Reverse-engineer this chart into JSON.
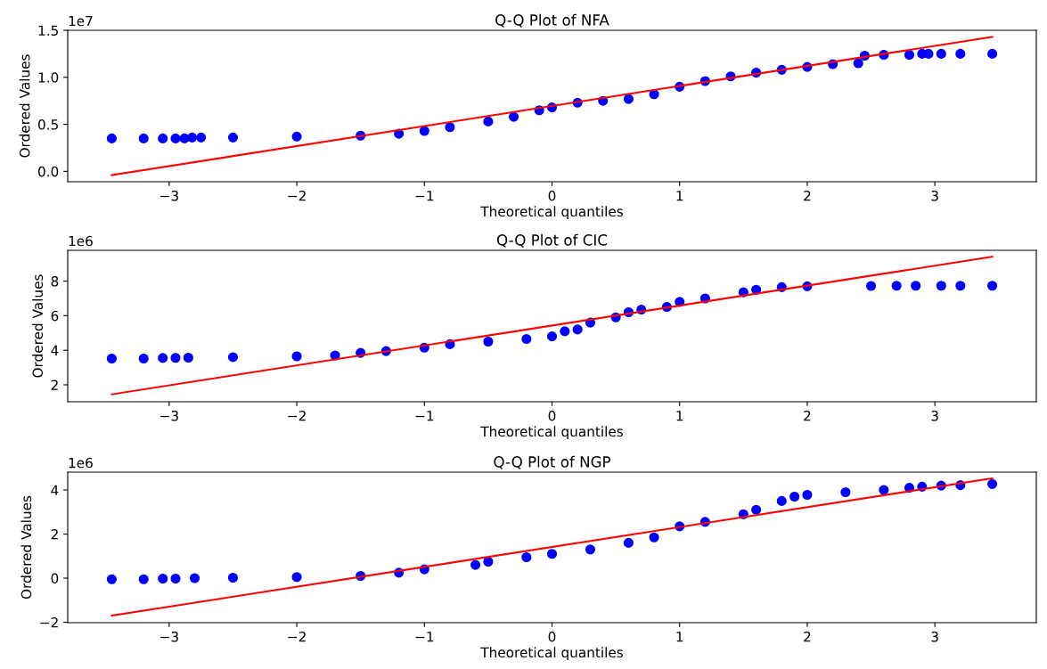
{
  "chart_data": [
    {
      "type": "scatter",
      "title": "Q-Q Plot of NFA",
      "xlabel": "Theoretical quantiles",
      "ylabel": "Ordered Values",
      "annotations": [
        "1e7"
      ],
      "xlim": [
        -3.795,
        3.795
      ],
      "xticks": [
        {
          "value": -3,
          "label": "−3"
        },
        {
          "value": -2,
          "label": "−2"
        },
        {
          "value": -1,
          "label": "−1"
        },
        0,
        1,
        2,
        3
      ],
      "ylim": [
        -0.11,
        1.5
      ],
      "yticks": [
        {
          "value": 0,
          "label": "0.0"
        },
        0.5,
        {
          "value": 1,
          "label": "1.0"
        },
        1.5
      ],
      "series": [
        {
          "marker": "circle",
          "color": "#0000ff",
          "x": [
            -3.45,
            -3.2,
            -3.05,
            -2.95,
            -2.88,
            -2.82,
            -2.75,
            -2.5,
            -2.0,
            -1.5,
            -1.2,
            -1.0,
            -0.8,
            -0.5,
            -0.3,
            -0.1,
            0.0,
            0.2,
            0.4,
            0.6,
            0.8,
            1.0,
            1.2,
            1.4,
            1.6,
            1.8,
            2.0,
            2.2,
            2.4,
            2.45,
            2.6,
            2.8,
            2.9,
            2.95,
            3.05,
            3.2,
            3.45
          ],
          "values": [
            0.35,
            0.35,
            0.35,
            0.35,
            0.35,
            0.36,
            0.36,
            0.36,
            0.37,
            0.38,
            0.4,
            0.43,
            0.47,
            0.53,
            0.58,
            0.65,
            0.68,
            0.73,
            0.75,
            0.77,
            0.82,
            0.9,
            0.96,
            1.01,
            1.05,
            1.08,
            1.11,
            1.14,
            1.15,
            1.23,
            1.24,
            1.24,
            1.25,
            1.25,
            1.25,
            1.25,
            1.25
          ]
        },
        {
          "type": "line",
          "color": "#ff0000",
          "x": [
            -3.45,
            3.45
          ],
          "values": [
            -0.04,
            1.43
          ]
        }
      ]
    },
    {
      "type": "scatter",
      "title": "Q-Q Plot of CIC",
      "xlabel": "Theoretical quantiles",
      "ylabel": "Ordered Values",
      "annotations": [
        "1e6"
      ],
      "xlim": [
        -3.795,
        3.795
      ],
      "xticks": [
        {
          "value": -3,
          "label": "−3"
        },
        {
          "value": -2,
          "label": "−2"
        },
        {
          "value": -1,
          "label": "−1"
        },
        0,
        1,
        2,
        3
      ],
      "ylim": [
        1.02,
        9.78
      ],
      "yticks": [
        2,
        4,
        6,
        8
      ],
      "series": [
        {
          "marker": "circle",
          "color": "#0000ff",
          "x": [
            -3.45,
            -3.2,
            -3.05,
            -2.95,
            -2.85,
            -2.5,
            -2.0,
            -1.7,
            -1.5,
            -1.3,
            -1.0,
            -0.8,
            -0.5,
            -0.2,
            0.0,
            0.1,
            0.2,
            0.3,
            0.5,
            0.6,
            0.7,
            0.9,
            1.0,
            1.2,
            1.5,
            1.6,
            1.8,
            2.0,
            2.5,
            2.7,
            2.85,
            3.05,
            3.2,
            3.45
          ],
          "values": [
            3.52,
            3.52,
            3.55,
            3.56,
            3.57,
            3.6,
            3.65,
            3.7,
            3.85,
            3.95,
            4.15,
            4.35,
            4.5,
            4.65,
            4.8,
            5.1,
            5.2,
            5.6,
            5.9,
            6.2,
            6.35,
            6.5,
            6.8,
            7.0,
            7.35,
            7.5,
            7.65,
            7.7,
            7.72,
            7.73,
            7.73,
            7.73,
            7.73,
            7.73
          ]
        },
        {
          "type": "line",
          "color": "#ff0000",
          "x": [
            -3.45,
            3.45
          ],
          "values": [
            1.45,
            9.41
          ]
        }
      ]
    },
    {
      "type": "scatter",
      "title": "Q-Q Plot of NGP",
      "xlabel": "Theoretical quantiles",
      "ylabel": "Ordered Values",
      "annotations": [
        "1e6"
      ],
      "xlim": [
        -3.795,
        3.795
      ],
      "xticks": [
        {
          "value": -3,
          "label": "−3"
        },
        {
          "value": -2,
          "label": "−2"
        },
        {
          "value": -1,
          "label": "−1"
        },
        0,
        1,
        2,
        3
      ],
      "ylim": [
        -2.02,
        4.81
      ],
      "yticks": [
        {
          "value": -2,
          "label": "−2"
        },
        0,
        2,
        4
      ],
      "series": [
        {
          "marker": "circle",
          "color": "#0000ff",
          "x": [
            -3.45,
            -3.2,
            -3.05,
            -2.95,
            -2.8,
            -2.5,
            -2.0,
            -1.5,
            -1.2,
            -1.0,
            -0.6,
            -0.5,
            -0.2,
            0.0,
            0.3,
            0.6,
            0.8,
            1.0,
            1.2,
            1.5,
            1.6,
            1.8,
            1.9,
            2.0,
            2.3,
            2.6,
            2.8,
            2.9,
            3.05,
            3.2,
            3.45
          ],
          "values": [
            -0.05,
            -0.05,
            -0.02,
            -0.02,
            0.0,
            0.02,
            0.05,
            0.1,
            0.25,
            0.4,
            0.6,
            0.75,
            0.95,
            1.1,
            1.3,
            1.6,
            1.85,
            2.35,
            2.55,
            2.9,
            3.1,
            3.5,
            3.7,
            3.78,
            3.9,
            4.0,
            4.1,
            4.15,
            4.2,
            4.22,
            4.27
          ]
        },
        {
          "type": "line",
          "color": "#ff0000",
          "x": [
            -3.45,
            3.45
          ],
          "values": [
            -1.7,
            4.53
          ]
        }
      ]
    }
  ]
}
